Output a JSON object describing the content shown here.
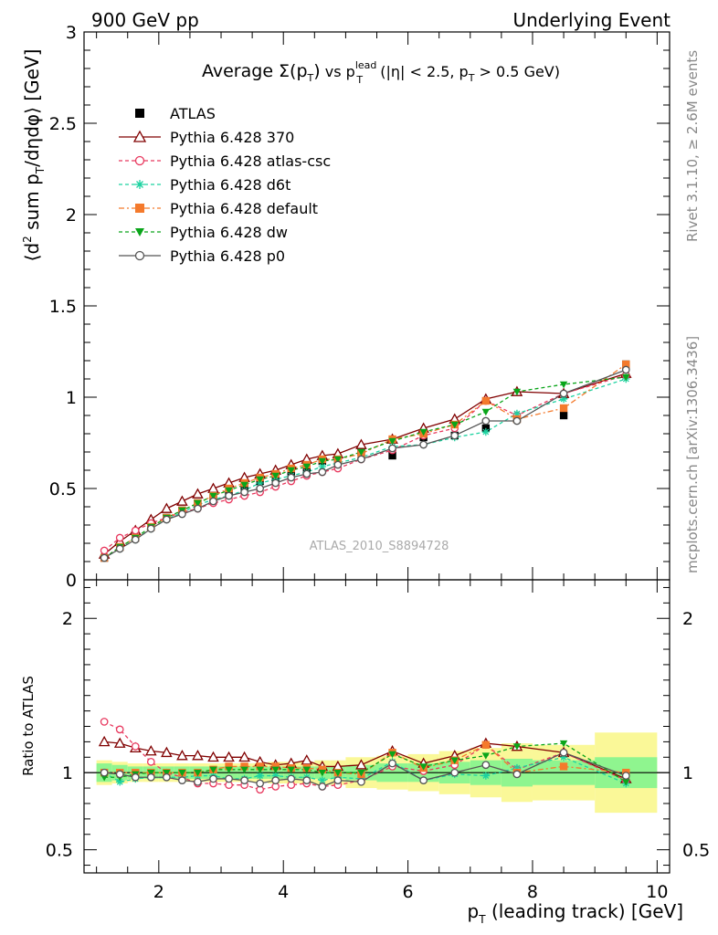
{
  "header": {
    "left": "900 GeV pp",
    "right": "Underlying Event"
  },
  "side_text": {
    "upper": "Rivet 3.1.10, ≥ 2.6M events",
    "lower": "mcplots.cern.ch [arXiv:1306.3436]"
  },
  "chart_data": [
    {
      "type": "line",
      "title": "Average Σ(pT) vs pT^lead (|η| < 2.5, pT > 0.5 GeV)",
      "title_parts": {
        "lead": "Average ",
        "sigma": "Σ(p",
        "sub_T1": "T",
        "close": ")",
        "vs": " vs p",
        "sup_lead": "lead",
        "sub_T2": "T",
        "cond1": " (|η| < 2.5, p",
        "sub_T3": "T",
        "cond2": " > 0.5 GeV)"
      },
      "ylabel": "⟨d² sum pT/dηdφ⟩ [GeV]",
      "ylabel_parts": {
        "a": "⟨d",
        "sup2": "2",
        "b": " sum p",
        "subT": "T",
        "c": "/dηdφ⟩ [GeV]"
      },
      "watermark": "ATLAS_2010_S8894728",
      "xlim": [
        0.8,
        10.2
      ],
      "ylim": [
        0,
        3
      ],
      "yticks": [
        0,
        0.5,
        1,
        1.5,
        2,
        2.5,
        3
      ],
      "ytick_labels": [
        "0",
        "0.5",
        "1",
        "1.5",
        "2",
        "2.5",
        "3"
      ],
      "grid": false,
      "legend_position": "top-left",
      "x": [
        1.125,
        1.375,
        1.625,
        1.875,
        2.125,
        2.375,
        2.625,
        2.875,
        3.125,
        3.375,
        3.625,
        3.875,
        4.125,
        4.375,
        4.625,
        4.875,
        5.25,
        5.75,
        6.25,
        6.75,
        7.25,
        7.75,
        8.5,
        9.5
      ],
      "series": [
        {
          "name": "ATLAS",
          "color": "#000000",
          "marker": "square-filled",
          "dash": "none",
          "values": [
            0.12,
            0.18,
            0.23,
            0.29,
            0.34,
            0.38,
            0.42,
            0.45,
            0.48,
            0.51,
            0.54,
            0.56,
            0.59,
            0.61,
            0.65,
            0.66,
            0.7,
            0.68,
            0.78,
            0.79,
            0.83,
            0.88,
            0.9,
            1.18
          ]
        },
        {
          "name": "Pythia 6.428 370",
          "color": "#800000",
          "marker": "triangle-open",
          "dash": "none",
          "values": [
            0.14,
            0.21,
            0.27,
            0.33,
            0.39,
            0.43,
            0.47,
            0.5,
            0.53,
            0.56,
            0.58,
            0.6,
            0.63,
            0.66,
            0.68,
            0.69,
            0.74,
            0.77,
            0.83,
            0.88,
            0.99,
            1.03,
            1.02,
            1.13
          ]
        },
        {
          "name": "Pythia 6.428 atlas-csc",
          "color": "#e8385e",
          "marker": "circle-open",
          "dash": "4,3",
          "values": [
            0.16,
            0.23,
            0.27,
            0.31,
            0.34,
            0.37,
            0.39,
            0.42,
            0.44,
            0.46,
            0.48,
            0.51,
            0.54,
            0.57,
            0.59,
            0.61,
            0.66,
            0.71,
            0.79,
            0.83,
            0.98,
            0.9,
            1.02,
            1.12
          ]
        },
        {
          "name": "Pythia 6.428 d6t",
          "color": "#1cd2a0",
          "marker": "asterisk",
          "dash": "4,3",
          "values": [
            0.12,
            0.17,
            0.22,
            0.28,
            0.33,
            0.37,
            0.41,
            0.44,
            0.46,
            0.49,
            0.53,
            0.55,
            0.57,
            0.59,
            0.62,
            0.64,
            0.67,
            0.73,
            0.74,
            0.78,
            0.81,
            0.91,
            0.99,
            1.1
          ]
        },
        {
          "name": "Pythia 6.428 default",
          "color": "#f47a2c",
          "marker": "square-filled",
          "dash": "6,3,2,3",
          "values": [
            0.12,
            0.18,
            0.23,
            0.29,
            0.34,
            0.38,
            0.42,
            0.46,
            0.5,
            0.53,
            0.56,
            0.58,
            0.61,
            0.63,
            0.66,
            0.66,
            0.69,
            0.77,
            0.8,
            0.85,
            0.98,
            0.88,
            0.94,
            1.18
          ]
        },
        {
          "name": "Pythia 6.428 dw",
          "color": "#0aa51a",
          "marker": "triangle-down-filled",
          "dash": "4,3",
          "values": [
            0.12,
            0.18,
            0.23,
            0.29,
            0.34,
            0.38,
            0.42,
            0.46,
            0.49,
            0.52,
            0.55,
            0.57,
            0.6,
            0.62,
            0.65,
            0.66,
            0.7,
            0.76,
            0.81,
            0.85,
            0.92,
            1.03,
            1.07,
            1.11
          ]
        },
        {
          "name": "Pythia 6.428 p0",
          "color": "#555555",
          "marker": "circle-open",
          "dash": "none",
          "values": [
            0.12,
            0.17,
            0.22,
            0.28,
            0.33,
            0.36,
            0.39,
            0.43,
            0.46,
            0.48,
            0.5,
            0.53,
            0.56,
            0.58,
            0.59,
            0.63,
            0.66,
            0.72,
            0.74,
            0.79,
            0.87,
            0.87,
            1.02,
            1.15
          ]
        }
      ]
    },
    {
      "type": "line",
      "xlabel": "pT (leading track) [GeV]",
      "xlabel_parts": {
        "a": "p",
        "subT": "T",
        "b": " (leading track) [GeV]"
      },
      "ylabel": "Ratio to ATLAS",
      "xlim": [
        0.8,
        10.2
      ],
      "ylim": [
        0.35,
        2.25
      ],
      "xticks": [
        2,
        4,
        6,
        8,
        10
      ],
      "xtick_labels": [
        "2",
        "4",
        "6",
        "8",
        "10"
      ],
      "yticks": [
        0.5,
        1,
        2
      ],
      "ytick_labels": [
        "0.5",
        "1",
        "2"
      ],
      "grid": false,
      "band_edges": [
        1.0,
        1.25,
        1.5,
        1.75,
        2.0,
        2.25,
        2.5,
        2.75,
        3.0,
        3.25,
        3.5,
        3.75,
        4.0,
        4.25,
        4.5,
        4.75,
        5.0,
        5.5,
        6.0,
        6.5,
        7.0,
        7.5,
        8.0,
        9.0,
        10.0
      ],
      "band_stat": [
        0.06,
        0.05,
        0.04,
        0.04,
        0.04,
        0.04,
        0.04,
        0.04,
        0.04,
        0.04,
        0.04,
        0.04,
        0.04,
        0.04,
        0.04,
        0.04,
        0.05,
        0.06,
        0.06,
        0.07,
        0.08,
        0.09,
        0.08,
        0.1
      ],
      "band_total": [
        0.08,
        0.07,
        0.06,
        0.06,
        0.06,
        0.06,
        0.06,
        0.06,
        0.06,
        0.06,
        0.06,
        0.07,
        0.07,
        0.07,
        0.08,
        0.08,
        0.1,
        0.11,
        0.12,
        0.14,
        0.16,
        0.19,
        0.18,
        0.26
      ],
      "band_colors": {
        "stat": "#8ff58f",
        "total": "#faf898"
      },
      "reference": 1,
      "series": [
        {
          "name": "Pythia 6.428 370",
          "values": [
            1.2,
            1.19,
            1.16,
            1.14,
            1.13,
            1.11,
            1.11,
            1.1,
            1.1,
            1.1,
            1.07,
            1.05,
            1.06,
            1.08,
            1.04,
            1.04,
            1.05,
            1.14,
            1.06,
            1.11,
            1.19,
            1.17,
            1.13,
            0.96
          ]
        },
        {
          "name": "Pythia 6.428 atlas-csc",
          "values": [
            1.33,
            1.28,
            1.17,
            1.07,
            1.0,
            0.97,
            0.93,
            0.93,
            0.92,
            0.92,
            0.89,
            0.91,
            0.92,
            0.93,
            0.91,
            0.92,
            0.95,
            1.04,
            1.01,
            1.05,
            1.18,
            1.02,
            1.13,
            0.95
          ]
        },
        {
          "name": "Pythia 6.428 d6t",
          "values": [
            1.0,
            0.94,
            0.96,
            0.97,
            0.97,
            0.97,
            0.98,
            0.98,
            0.96,
            0.96,
            0.98,
            0.98,
            0.97,
            0.97,
            0.95,
            0.97,
            0.96,
            1.07,
            0.95,
            0.99,
            0.98,
            1.03,
            1.1,
            0.93
          ]
        },
        {
          "name": "Pythia 6.428 default",
          "values": [
            1.0,
            1.0,
            1.0,
            1.0,
            1.0,
            1.0,
            1.0,
            1.02,
            1.04,
            1.04,
            1.04,
            1.04,
            1.03,
            1.03,
            1.02,
            1.0,
            0.99,
            1.13,
            1.03,
            1.08,
            1.18,
            1.0,
            1.04,
            1.0
          ]
        },
        {
          "name": "Pythia 6.428 dw",
          "values": [
            0.97,
            0.97,
            0.99,
            1.0,
            1.0,
            1.0,
            1.0,
            1.02,
            1.02,
            1.02,
            1.02,
            1.02,
            1.02,
            1.02,
            1.0,
            1.0,
            1.0,
            1.12,
            1.04,
            1.08,
            1.11,
            1.17,
            1.19,
            0.94
          ]
        },
        {
          "name": "Pythia 6.428 p0",
          "values": [
            1.0,
            0.99,
            0.97,
            0.97,
            0.97,
            0.95,
            0.94,
            0.96,
            0.96,
            0.95,
            0.93,
            0.95,
            0.96,
            0.95,
            0.91,
            0.95,
            0.94,
            1.06,
            0.95,
            1.0,
            1.05,
            0.99,
            1.13,
            0.98
          ]
        }
      ]
    }
  ]
}
